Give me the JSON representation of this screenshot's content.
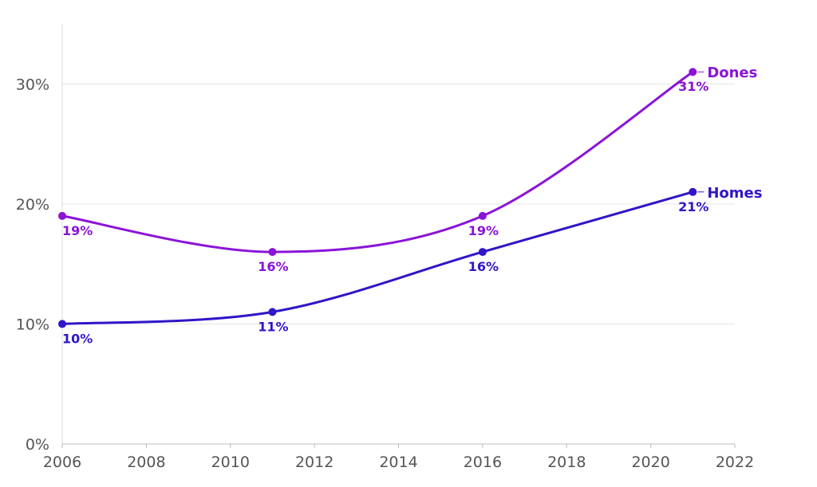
{
  "chart_data": {
    "type": "line",
    "title": "",
    "xlabel": "",
    "ylabel": "",
    "xlim": [
      2006,
      2022
    ],
    "ylim": [
      0,
      35
    ],
    "x_ticks": [
      {
        "value": 2006,
        "label": "2006"
      },
      {
        "value": 2008,
        "label": "2008"
      },
      {
        "value": 2010,
        "label": "2010"
      },
      {
        "value": 2012,
        "label": "2012"
      },
      {
        "value": 2014,
        "label": "2014"
      },
      {
        "value": 2016,
        "label": "2016"
      },
      {
        "value": 2018,
        "label": "2018"
      },
      {
        "value": 2020,
        "label": "2020"
      },
      {
        "value": 2022,
        "label": "2022"
      }
    ],
    "y_ticks": [
      {
        "value": 0,
        "label": "0%"
      },
      {
        "value": 10,
        "label": "10%"
      },
      {
        "value": 20,
        "label": "20%"
      },
      {
        "value": 30,
        "label": "30%"
      }
    ],
    "grid": "horizontal",
    "legend": "inline labels at line ends",
    "series": [
      {
        "name": "Dones",
        "color": "#8a14d8",
        "points": [
          {
            "x": 2006,
            "y": 19,
            "label": "19%"
          },
          {
            "x": 2011,
            "y": 16,
            "label": "16%"
          },
          {
            "x": 2016,
            "y": 19,
            "label": "19%"
          },
          {
            "x": 2021,
            "y": 31,
            "label": "31%"
          }
        ]
      },
      {
        "name": "Homes",
        "color": "#2f16c8",
        "points": [
          {
            "x": 2006,
            "y": 10,
            "label": "10%"
          },
          {
            "x": 2011,
            "y": 11,
            "label": "11%"
          },
          {
            "x": 2016,
            "y": 16,
            "label": "16%"
          },
          {
            "x": 2021,
            "y": 21,
            "label": "21%"
          }
        ]
      }
    ]
  }
}
